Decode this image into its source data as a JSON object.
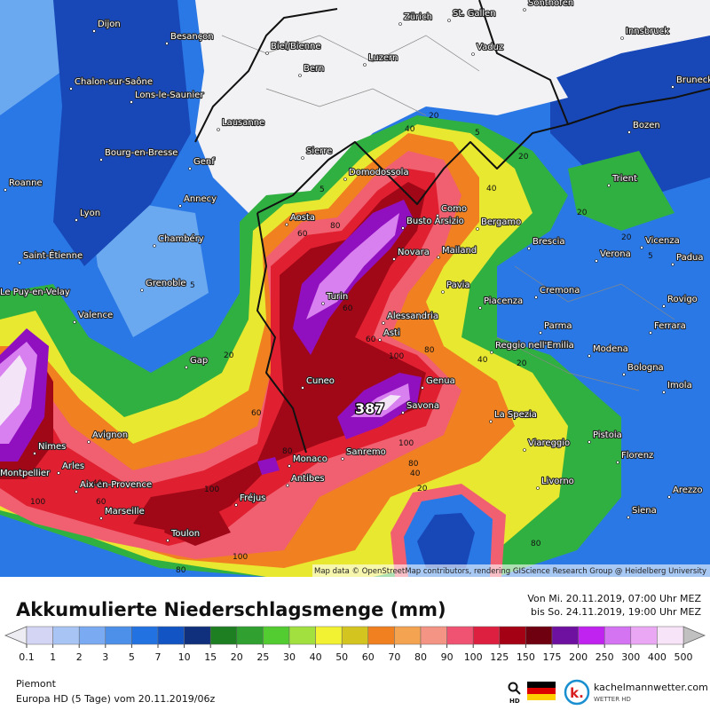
{
  "map": {
    "cities": [
      "Dijon",
      "Besançon",
      "Biel/Bienne",
      "Zürich",
      "St. Gallen",
      "Sonthofen",
      "Innsbruck",
      "Bern",
      "Luzern",
      "Vaduz",
      "Bruneck",
      "Chalon-sur-Saône",
      "Lons-le-Saunier",
      "Lausanne",
      "Bozen",
      "Bourg-en-Bresse",
      "Genf",
      "Sierre",
      "Domodossola",
      "Roanne",
      "Trient",
      "Annecy",
      "Aosta",
      "Como",
      "Lyon",
      "Busto Arsizio",
      "Bergamo",
      "Chambéry",
      "Novara",
      "Mailand",
      "Brescia",
      "Vicenza",
      "Verona",
      "Padua",
      "Saint-Étienne",
      "Le Puy-en-Velay",
      "Grenoble",
      "Turin",
      "Pavia",
      "Cremona",
      "Piacenza",
      "Rovigo",
      "Valence",
      "Alessandria",
      "Parma",
      "Asti",
      "Ferrara",
      "Reggio nell'Emilia",
      "Modena",
      "Gap",
      "Genua",
      "Bologna",
      "Imola",
      "Cuneo",
      "Savona",
      "La Spezia",
      "Nimes",
      "Avignon",
      "Arles",
      "Monaco",
      "Sanremo",
      "Viareggio",
      "Pistoia",
      "Montpellier",
      "Florenz",
      "Aix-en-Provence",
      "Antibes",
      "Livorno",
      "Fréjus",
      "Arezzo",
      "Marseille",
      "Siena",
      "Toulon"
    ],
    "contour_labels": [
      20,
      40,
      5,
      20,
      5,
      40,
      60,
      80,
      20,
      20,
      5,
      5,
      60,
      60,
      20,
      40,
      20,
      100,
      80,
      60,
      80,
      100,
      40,
      60,
      100,
      100,
      80,
      40,
      20,
      80,
      100,
      80
    ],
    "max_label": "387",
    "attribution": "Map data © OpenStreetMap contributors, rendering GIScience Research Group @ Heidelberg University"
  },
  "header": {
    "title": "Akkumulierte Niederschlagsmenge (mm)",
    "period_from": "Von Mi. 20.11.2019, 07:00 Uhr MEZ",
    "period_to": "bis So. 24.11.2019, 19:00 Uhr MEZ"
  },
  "legend": {
    "ticks": [
      0.1,
      1,
      2,
      3,
      5,
      7,
      10,
      15,
      20,
      25,
      30,
      40,
      50,
      60,
      70,
      80,
      90,
      100,
      125,
      150,
      175,
      200,
      250,
      300,
      400,
      500
    ],
    "colors": [
      "#d4d4f4",
      "#a8c4f4",
      "#7aaaf2",
      "#4c90ea",
      "#2272e2",
      "#1254c4",
      "#10307e",
      "#1e7e22",
      "#30a030",
      "#52cc30",
      "#a2e040",
      "#f2f232",
      "#d4c420",
      "#f08020",
      "#f4a450",
      "#f49484",
      "#f05272",
      "#de2040",
      "#a40214",
      "#6e0010",
      "#6e10a0",
      "#c022f0",
      "#d474f2",
      "#eaa8f4",
      "#f8e4f8"
    ],
    "below_color": "#ececf2",
    "above_color": "#c0c0c0"
  },
  "footer": {
    "region": "Piemont",
    "model": "Europa HD (5 Tage) vom  20.11.2019/06z",
    "hd": "HD",
    "logo_letter": "k.",
    "brand": "kachelmannwetter.com",
    "brand_sub": "WETTER HD"
  }
}
